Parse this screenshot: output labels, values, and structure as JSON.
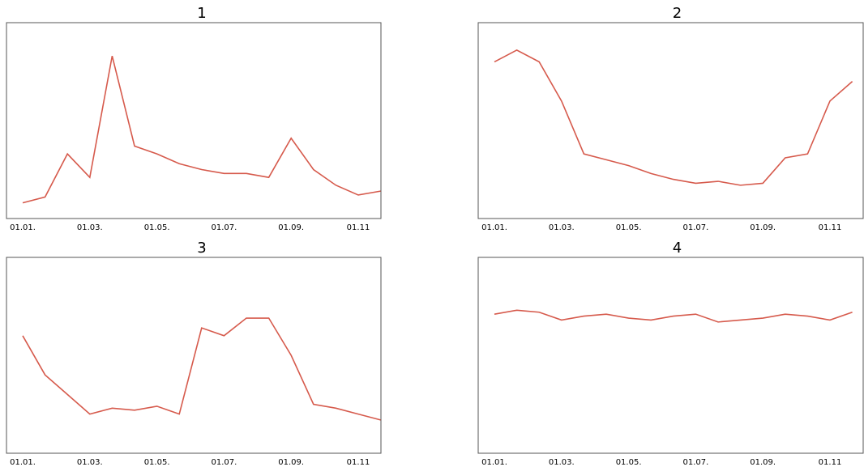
{
  "chart_data": [
    {
      "type": "line",
      "title": "1",
      "color": "#d65a4c",
      "ylim": [
        0,
        100
      ],
      "categories": [
        "01.01.",
        null,
        null,
        "01.03.",
        null,
        null,
        "01.05.",
        null,
        null,
        "01.07.",
        null,
        null,
        "01.09.",
        null,
        null,
        "01.11",
        null
      ],
      "values": [
        8,
        11,
        33,
        21,
        83,
        37,
        33,
        28,
        25,
        23,
        23,
        21,
        41,
        25,
        17,
        12,
        14
      ]
    },
    {
      "type": "line",
      "title": "2",
      "color": "#d65a4c",
      "ylim": [
        0,
        100
      ],
      "categories": [
        "01.01.",
        null,
        null,
        "01.03.",
        null,
        null,
        "01.05.",
        null,
        null,
        "01.07.",
        null,
        null,
        "01.09.",
        null,
        null,
        "01.11",
        null
      ],
      "values": [
        80,
        86,
        80,
        60,
        33,
        30,
        27,
        23,
        20,
        18,
        19,
        17,
        18,
        31,
        33,
        60,
        70
      ]
    },
    {
      "type": "line",
      "title": "3",
      "color": "#d65a4c",
      "ylim": [
        0,
        100
      ],
      "categories": [
        "01.01.",
        null,
        null,
        "01.03.",
        null,
        null,
        "01.05.",
        null,
        null,
        "01.07.",
        null,
        null,
        "01.09.",
        null,
        null,
        "01.11",
        null
      ],
      "values": [
        60,
        40,
        30,
        20,
        23,
        22,
        24,
        20,
        64,
        60,
        69,
        69,
        50,
        25,
        23,
        20,
        17
      ]
    },
    {
      "type": "line",
      "title": "4",
      "color": "#d65a4c",
      "ylim": [
        0,
        100
      ],
      "categories": [
        "01.01.",
        null,
        null,
        "01.03.",
        null,
        null,
        "01.05.",
        null,
        null,
        "01.07.",
        null,
        null,
        "01.09.",
        null,
        null,
        "01.11",
        null
      ],
      "values": [
        71,
        73,
        72,
        68,
        70,
        71,
        69,
        68,
        70,
        71,
        67,
        68,
        69,
        71,
        70,
        68,
        72
      ]
    }
  ]
}
